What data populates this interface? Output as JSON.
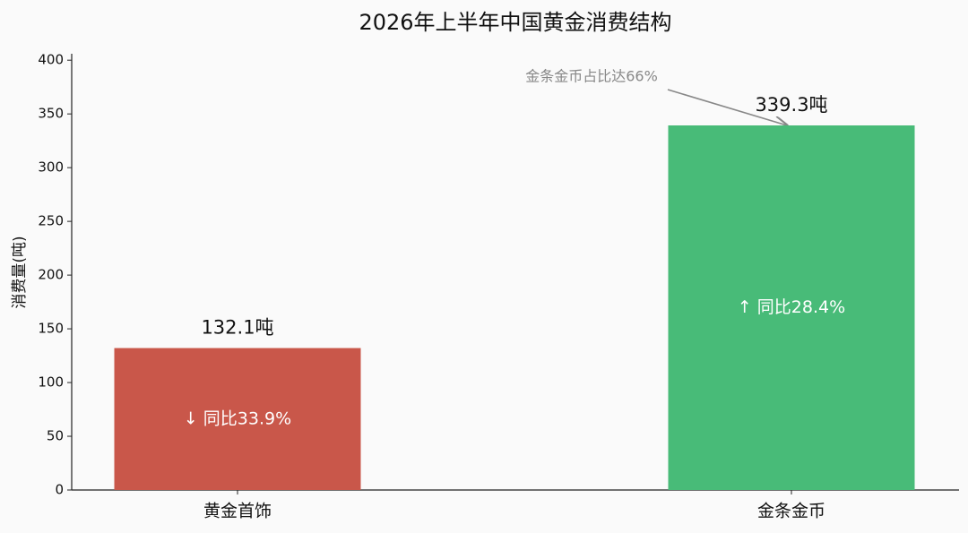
{
  "chart_data": {
    "type": "bar",
    "title": "2026年上半年中国黄金消费结构",
    "y_label": "消费量(吨)",
    "categories": [
      "黄金首饰",
      "金条金币"
    ],
    "values": [
      132.1,
      339.3
    ],
    "value_labels": [
      "132.1吨",
      "339.3吨"
    ],
    "colors": [
      "#c9574a",
      "#48bb78"
    ],
    "bar_notes": [
      "↓ 同比33.9%",
      "↑ 同比28.4%"
    ],
    "callout": "金条金币占比达66%",
    "ylim": [
      0,
      406
    ],
    "yticks": [
      0,
      50,
      100,
      150,
      200,
      250,
      300,
      350,
      400
    ],
    "grid": false
  }
}
